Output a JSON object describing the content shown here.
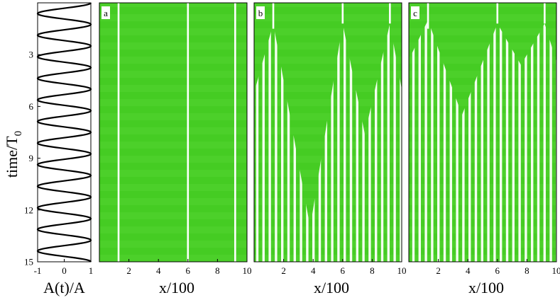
{
  "chart_data": [
    {
      "type": "line",
      "panel": "left",
      "title": "",
      "xlabel": "A(t)/A",
      "ylabel": "time/T",
      "ylabel_subscript": "0",
      "xlim": [
        -1,
        1
      ],
      "ylim": [
        15,
        0
      ],
      "y_inverted": true,
      "xticks": [
        -1,
        0,
        1
      ],
      "yticks": [
        3,
        6,
        9,
        12,
        15
      ],
      "series": [
        {
          "function": "cos(2*pi*t*0.8)",
          "period": 1.25,
          "t_range": [
            0,
            15
          ],
          "amplitude": 1
        }
      ]
    },
    {
      "type": "heatmap",
      "panel": "a",
      "label": "a",
      "xlabel": "x/100",
      "xlim": [
        0,
        10
      ],
      "ylim": [
        15,
        0
      ],
      "xticks": [
        2,
        4,
        6,
        8,
        10
      ],
      "background_color": "#44cc22",
      "stripe_color": "#ffffff",
      "boundary_lines": [
        {
          "x": 1.3,
          "from_t": 0,
          "to_t": 15
        },
        {
          "x": 6.0,
          "from_t": 0,
          "to_t": 15
        },
        {
          "x": 9.2,
          "from_t": 0,
          "to_t": 15
        }
      ],
      "striped_regions": []
    },
    {
      "type": "heatmap",
      "panel": "b",
      "label": "b",
      "xlabel": "x/100",
      "xlim": [
        0,
        10
      ],
      "ylim": [
        15,
        0
      ],
      "xticks": [
        2,
        4,
        6,
        8,
        10
      ],
      "background_color": "#44cc22",
      "stripe_color": "#ffffff",
      "boundary_lines": [
        {
          "x": 1.3,
          "from_t": 0,
          "to_t": 1.5
        },
        {
          "x": 6.0,
          "from_t": 0,
          "to_t": 1.2
        },
        {
          "x": 9.2,
          "from_t": 0,
          "to_t": 1.2
        }
      ],
      "striped_regions": [
        {
          "name": "below front",
          "front": [
            [
              0,
              5.2
            ],
            [
              1.3,
              1.2
            ],
            [
              3.8,
              13.0
            ],
            [
              6.0,
              1.2
            ],
            [
              7.5,
              7.6
            ],
            [
              9.2,
              1.2
            ],
            [
              10,
              5.0
            ]
          ]
        }
      ]
    },
    {
      "type": "heatmap",
      "panel": "c",
      "label": "c",
      "xlabel": "x/100",
      "xlim": [
        0,
        10
      ],
      "ylim": [
        15,
        0
      ],
      "xticks": [
        2,
        4,
        6,
        8,
        10
      ],
      "background_color": "#44cc22",
      "stripe_color": "#ffffff",
      "boundary_lines": [
        {
          "x": 1.3,
          "from_t": 0,
          "to_t": 1.5
        },
        {
          "x": 6.0,
          "from_t": 0,
          "to_t": 1.2
        },
        {
          "x": 9.2,
          "from_t": 0,
          "to_t": 1.2
        }
      ],
      "striped_regions": [
        {
          "name": "below front",
          "front": [
            [
              0,
              3.3
            ],
            [
              1.3,
              1.0
            ],
            [
              3.6,
              6.5
            ],
            [
              6.0,
              1.2
            ],
            [
              7.6,
              3.6
            ],
            [
              9.2,
              1.2
            ],
            [
              10,
              3.4
            ]
          ]
        }
      ]
    }
  ]
}
